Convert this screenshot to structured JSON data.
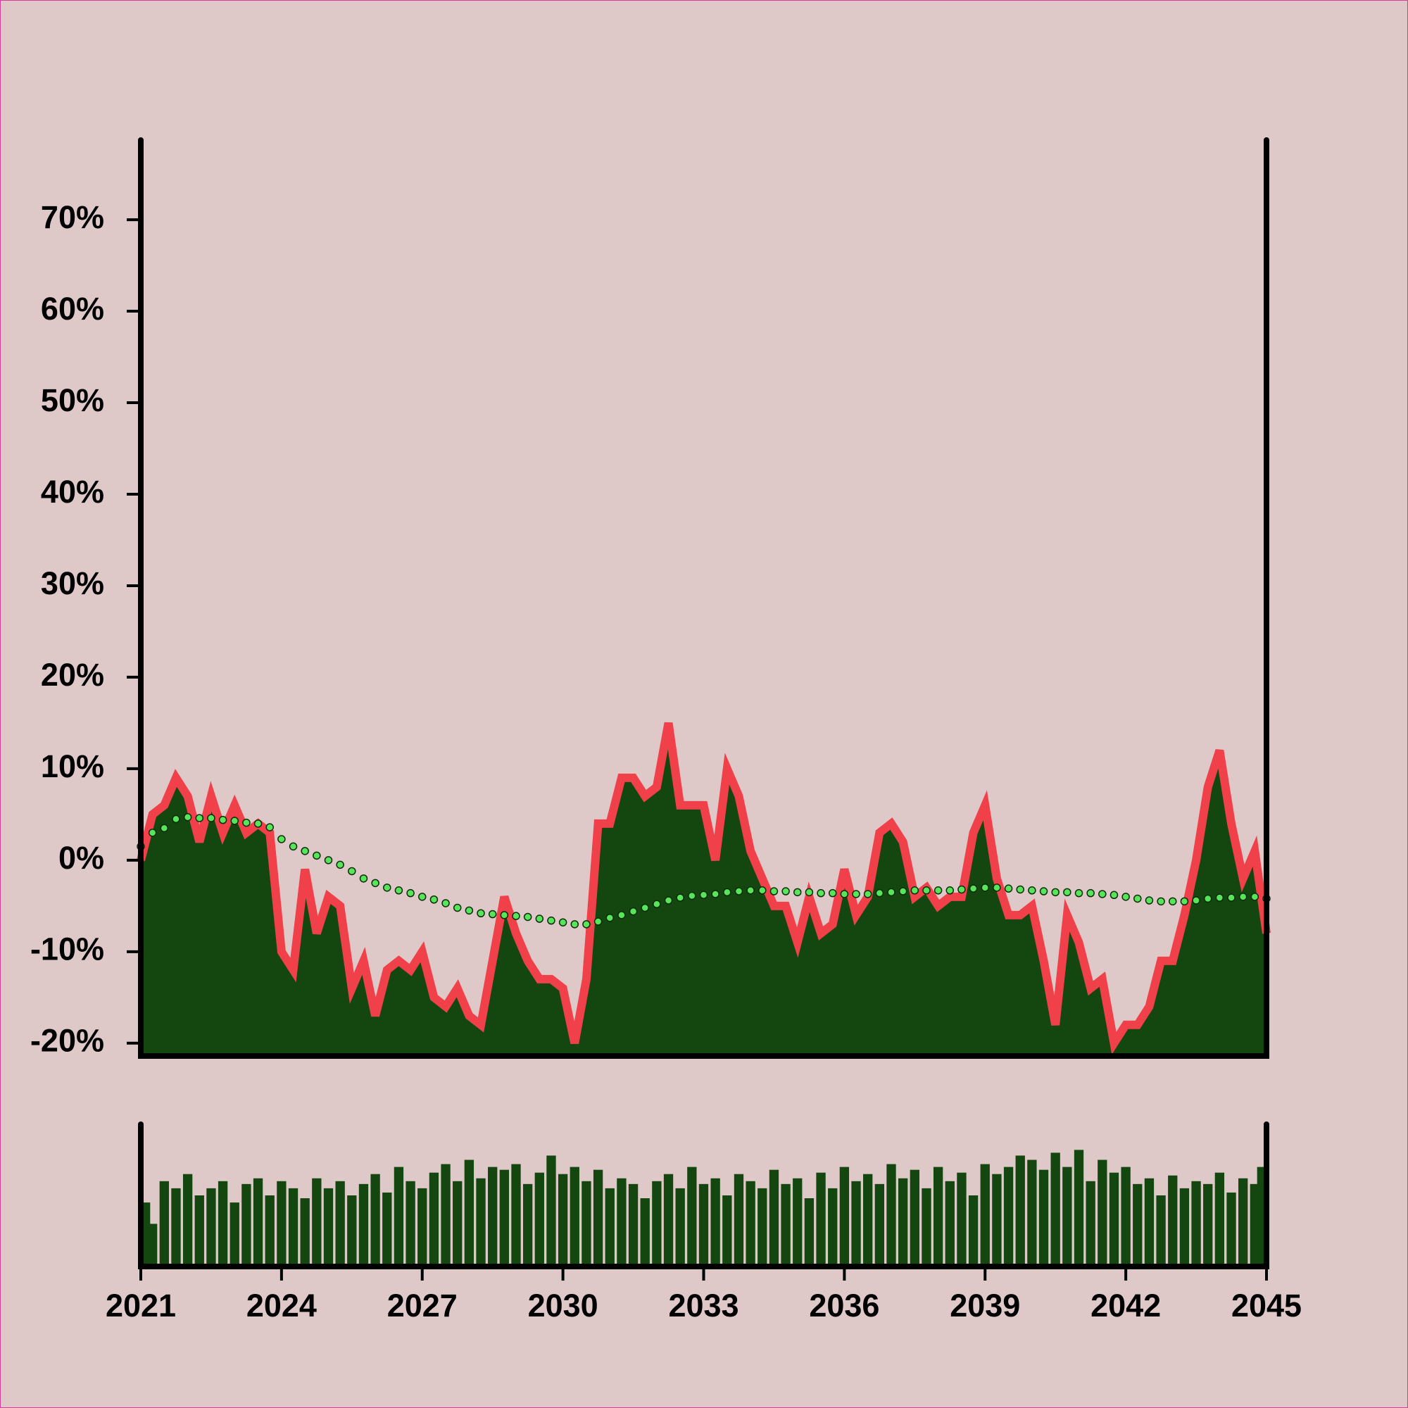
{
  "chart_data": [
    {
      "type": "area",
      "x": [
        2021,
        2021.25,
        2021.5,
        2021.75,
        2022,
        2022.25,
        2022.5,
        2022.75,
        2023,
        2023.25,
        2023.5,
        2023.75,
        2024,
        2024.25,
        2024.5,
        2024.75,
        2025,
        2025.25,
        2025.5,
        2025.75,
        2026,
        2026.25,
        2026.5,
        2026.75,
        2027,
        2027.25,
        2027.5,
        2027.75,
        2028,
        2028.25,
        2028.5,
        2028.75,
        2029,
        2029.25,
        2029.5,
        2029.75,
        2030,
        2030.25,
        2030.5,
        2030.75,
        2031,
        2031.25,
        2031.5,
        2031.75,
        2032,
        2032.25,
        2032.5,
        2032.75,
        2033,
        2033.25,
        2033.5,
        2033.75,
        2034,
        2034.25,
        2034.5,
        2034.75,
        2035,
        2035.25,
        2035.5,
        2035.75,
        2036,
        2036.25,
        2036.5,
        2036.75,
        2037,
        2037.25,
        2037.5,
        2037.75,
        2038,
        2038.25,
        2038.5,
        2038.75,
        2039,
        2039.25,
        2039.5,
        2039.75,
        2040,
        2040.25,
        2040.5,
        2040.75,
        2041,
        2041.25,
        2041.5,
        2041.75,
        2042,
        2042.25,
        2042.5,
        2042.75,
        2043,
        2043.25,
        2043.5,
        2043.75,
        2044,
        2044.25,
        2044.5,
        2044.75,
        2045
      ],
      "series": [
        {
          "color": "#f0404a",
          "fill": "#14470f",
          "values": [
            0,
            5,
            6,
            9,
            7,
            2,
            7,
            3,
            6,
            3,
            4,
            3,
            -10,
            -12,
            -1,
            -8,
            -4,
            -5,
            -14,
            -11,
            -17,
            -12,
            -11,
            -12,
            -10,
            -15,
            -16,
            -14,
            -17,
            -18,
            -11,
            -4,
            -8,
            -11,
            -13,
            -13,
            -14,
            -20,
            -13,
            4,
            4,
            9,
            9,
            7,
            8,
            15,
            6,
            6,
            6,
            0,
            10,
            7,
            1,
            -2,
            -5,
            -5,
            -9,
            -4,
            -8,
            -7,
            -1,
            -6,
            -4,
            3,
            4,
            2,
            -4,
            -3,
            -5,
            -4,
            -4,
            3,
            6,
            -2,
            -6,
            -6,
            -5,
            -11,
            -18,
            -6,
            -9,
            -14,
            -13,
            -20,
            -18,
            -18,
            -16,
            -11,
            -11,
            -6,
            0,
            8,
            12,
            4,
            -2,
            1,
            -8
          ]
        },
        {
          "color": "#57e65a",
          "style": "dotted",
          "values": [
            1.5,
            3,
            3.5,
            4.5,
            4.7,
            4.6,
            4.6,
            4.4,
            4.3,
            4.1,
            4,
            3.6,
            2.3,
            1.5,
            1,
            0.5,
            0,
            -0.5,
            -1.2,
            -2,
            -2.5,
            -3,
            -3.3,
            -3.6,
            -4,
            -4.3,
            -4.7,
            -5.2,
            -5.5,
            -5.8,
            -5.9,
            -6,
            -6.1,
            -6.2,
            -6.4,
            -6.6,
            -6.8,
            -7,
            -7,
            -6.7,
            -6.3,
            -6,
            -5.6,
            -5.2,
            -4.8,
            -4.4,
            -4.1,
            -3.9,
            -3.8,
            -3.7,
            -3.5,
            -3.4,
            -3.3,
            -3.3,
            -3.4,
            -3.4,
            -3.5,
            -3.5,
            -3.6,
            -3.6,
            -3.7,
            -3.7,
            -3.7,
            -3.6,
            -3.5,
            -3.4,
            -3.3,
            -3.3,
            -3.3,
            -3.3,
            -3.2,
            -3.1,
            -3,
            -3,
            -3.1,
            -3.2,
            -3.3,
            -3.4,
            -3.5,
            -3.5,
            -3.6,
            -3.6,
            -3.7,
            -3.8,
            -4,
            -4.2,
            -4.4,
            -4.5,
            -4.5,
            -4.5,
            -4.4,
            -4.2,
            -4.1,
            -4.1,
            -4,
            -4,
            -4.2
          ]
        }
      ],
      "xlim": [
        2021,
        2045
      ],
      "ylim": [
        -21.4,
        78.7
      ],
      "yticks": [
        {
          "value": -20,
          "label": "-20%"
        },
        {
          "value": -10,
          "label": "-10%"
        },
        {
          "value": 0,
          "label": "0%"
        },
        {
          "value": 10,
          "label": "10%"
        },
        {
          "value": 20,
          "label": "20%"
        },
        {
          "value": 30,
          "label": "30%"
        },
        {
          "value": 40,
          "label": "40%"
        },
        {
          "value": 50,
          "label": "50%"
        },
        {
          "value": 60,
          "label": "60%"
        },
        {
          "value": 70,
          "label": "70%"
        }
      ]
    },
    {
      "type": "bar",
      "x": [
        2021,
        2021.25,
        2021.5,
        2021.75,
        2022,
        2022.25,
        2022.5,
        2022.75,
        2023,
        2023.25,
        2023.5,
        2023.75,
        2024,
        2024.25,
        2024.5,
        2024.75,
        2025,
        2025.25,
        2025.5,
        2025.75,
        2026,
        2026.25,
        2026.5,
        2026.75,
        2027,
        2027.25,
        2027.5,
        2027.75,
        2028,
        2028.25,
        2028.5,
        2028.75,
        2029,
        2029.25,
        2029.5,
        2029.75,
        2030,
        2030.25,
        2030.5,
        2030.75,
        2031,
        2031.25,
        2031.5,
        2031.75,
        2032,
        2032.25,
        2032.5,
        2032.75,
        2033,
        2033.25,
        2033.5,
        2033.75,
        2034,
        2034.25,
        2034.5,
        2034.75,
        2035,
        2035.25,
        2035.5,
        2035.75,
        2036,
        2036.25,
        2036.5,
        2036.75,
        2037,
        2037.25,
        2037.5,
        2037.75,
        2038,
        2038.25,
        2038.5,
        2038.75,
        2039,
        2039.25,
        2039.5,
        2039.75,
        2040,
        2040.25,
        2040.5,
        2040.75,
        2041,
        2041.25,
        2041.5,
        2041.75,
        2042,
        2042.25,
        2042.5,
        2042.75,
        2043,
        2043.25,
        2043.5,
        2043.75,
        2044,
        2044.25,
        2044.5,
        2044.75,
        2045
      ],
      "values": [
        45,
        30,
        60,
        55,
        65,
        50,
        55,
        60,
        45,
        58,
        62,
        50,
        60,
        55,
        48,
        62,
        55,
        60,
        50,
        58,
        65,
        52,
        70,
        60,
        55,
        66,
        72,
        60,
        75,
        62,
        70,
        68,
        72,
        58,
        66,
        78,
        65,
        70,
        60,
        68,
        55,
        62,
        58,
        48,
        60,
        65,
        55,
        70,
        58,
        62,
        50,
        65,
        60,
        55,
        68,
        58,
        62,
        48,
        66,
        55,
        70,
        60,
        65,
        58,
        72,
        62,
        68,
        55,
        70,
        60,
        66,
        50,
        72,
        65,
        70,
        78,
        75,
        68,
        80,
        70,
        82,
        60,
        75,
        66,
        70,
        58,
        62,
        50,
        64,
        55,
        60,
        58,
        66,
        52,
        62,
        58,
        70
      ],
      "color": "#14470f",
      "xlim": [
        2021,
        2045
      ],
      "ylim": [
        0,
        100
      ],
      "xticks": [
        2021,
        2024,
        2027,
        2030,
        2033,
        2036,
        2039,
        2042,
        2045
      ]
    }
  ]
}
